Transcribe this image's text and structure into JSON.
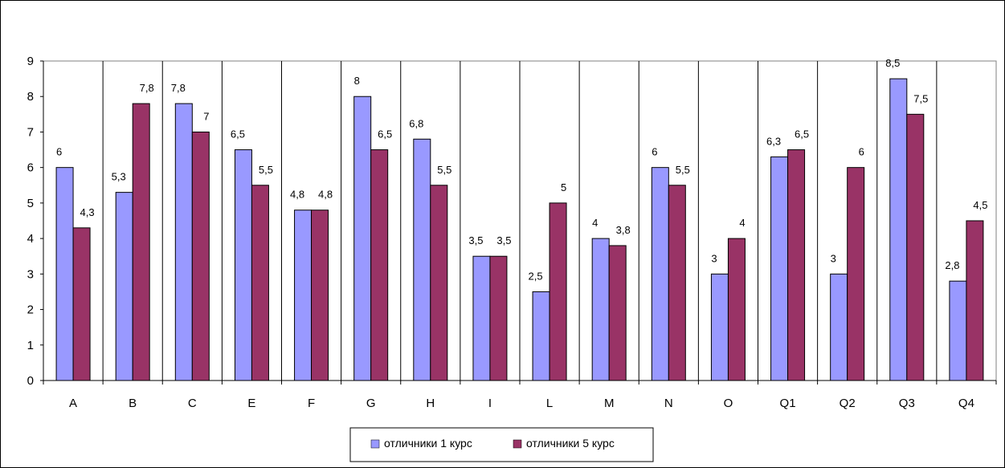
{
  "chart_data": {
    "type": "bar",
    "categories": [
      "A",
      "B",
      "C",
      "E",
      "F",
      "G",
      "H",
      "I",
      "L",
      "M",
      "N",
      "O",
      "Q1",
      "Q2",
      "Q3",
      "Q4"
    ],
    "series": [
      {
        "name": "отличники 1 курс",
        "color": "#9999ff",
        "values": [
          6,
          5.3,
          7.8,
          6.5,
          4.8,
          8,
          6.8,
          3.5,
          2.5,
          4,
          6,
          3,
          6.3,
          3,
          8.5,
          2.8
        ],
        "labels": [
          "6",
          "5,3",
          "7,8",
          "6,5",
          "4,8",
          "8",
          "6,8",
          "3,5",
          "2,5",
          "4",
          "6",
          "3",
          "6,3",
          "3",
          "8,5",
          "2,8"
        ]
      },
      {
        "name": "отличники 5 курс",
        "color": "#993366",
        "values": [
          4.3,
          7.8,
          7,
          5.5,
          4.8,
          6.5,
          5.5,
          3.5,
          5,
          3.8,
          5.5,
          4,
          6.5,
          6,
          7.5,
          4.5
        ],
        "labels": [
          "4,3",
          "7,8",
          "7",
          "5,5",
          "4,8",
          "6,5",
          "5,5",
          "3,5",
          "5",
          "3,8",
          "5,5",
          "4",
          "6,5",
          "6",
          "7,5",
          "4,5"
        ]
      }
    ],
    "y_ticks": [
      "0",
      "1",
      "2",
      "3",
      "4",
      "5",
      "6",
      "7",
      "8",
      "9"
    ],
    "ylim": [
      0,
      9
    ],
    "grid": "vertical category separators",
    "legend": "bottom-center",
    "title": "",
    "xlabel": "",
    "ylabel": ""
  }
}
